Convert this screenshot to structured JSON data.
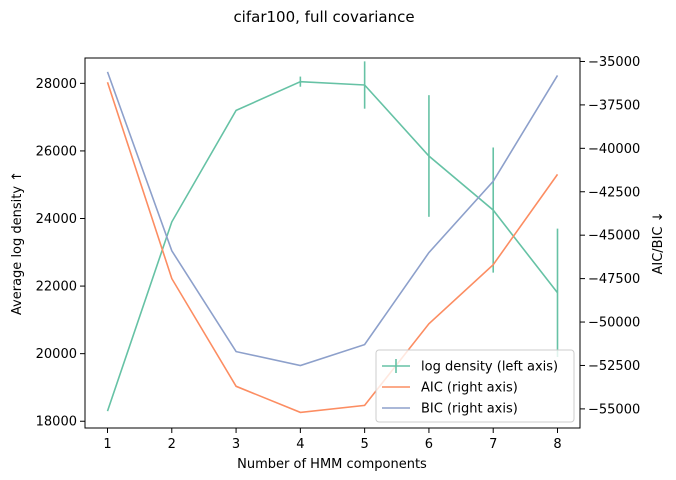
{
  "chart_data": {
    "type": "line",
    "title": "cifar100, full covariance",
    "xlabel": "Number of HMM components",
    "ylabel_left": "Average log density ↑",
    "ylabel_right": "AIC/BIC  ↓",
    "x": [
      1,
      2,
      3,
      4,
      5,
      6,
      7,
      8
    ],
    "xlim": [
      0.65,
      8.35
    ],
    "ylim_left": [
      17800,
      28750
    ],
    "ylim_right": [
      -56100,
      -34800
    ],
    "x_ticks": [
      "1",
      "2",
      "3",
      "4",
      "5",
      "6",
      "7",
      "8"
    ],
    "y_ticks_left": [
      18000,
      20000,
      22000,
      24000,
      26000,
      28000
    ],
    "y_tick_labels_left": [
      "18000",
      "20000",
      "22000",
      "24000",
      "26000",
      "28000"
    ],
    "y_ticks_right": [
      -55000,
      -52500,
      -50000,
      -47500,
      -45000,
      -42500,
      -40000,
      -37500,
      -35000
    ],
    "y_tick_labels_right": [
      "−55000",
      "−52500",
      "−50000",
      "−47500",
      "−45000",
      "−42500",
      "−40000",
      "−37500",
      "−35000"
    ],
    "grid": false,
    "legend_position": "lower-right",
    "series": [
      {
        "name": "log density (left axis)",
        "axis": "left",
        "color": "#66c2a5",
        "values": [
          18300,
          23900,
          27200,
          28050,
          27950,
          25850,
          24250,
          21800
        ],
        "error": [
          0,
          0,
          0,
          150,
          700,
          1800,
          1850,
          1900
        ]
      },
      {
        "name": "AIC (right axis)",
        "axis": "right",
        "color": "#fc8d62",
        "values": [
          -36200,
          -47500,
          -53700,
          -55200,
          -54800,
          -50100,
          -46700,
          -41500
        ]
      },
      {
        "name": "BIC (right axis)",
        "axis": "right",
        "color": "#8da0cb",
        "values": [
          -35600,
          -45900,
          -51700,
          -52500,
          -51300,
          -46000,
          -41900,
          -35800
        ]
      }
    ]
  }
}
